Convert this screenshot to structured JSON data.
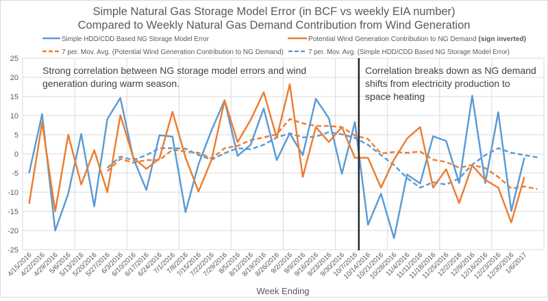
{
  "chart_data": {
    "type": "line",
    "title": [
      "Simple Natural Gas Storage Model Error (in BCF vs weekly EIA number)",
      "Compared to Weekly Natural Gas Demand Contribution from Wind Generation"
    ],
    "xlabel": "Week Ending",
    "ylabel": "",
    "ylim": [
      -25,
      25
    ],
    "yticks": [
      25,
      20,
      15,
      10,
      5,
      0,
      -5,
      -10,
      -15,
      -20,
      -25
    ],
    "grid": true,
    "legend_position": "top",
    "categories": [
      "4/15/2016",
      "4/22/2016",
      "4/29/2016",
      "5/6/2016",
      "5/13/2016",
      "5/20/2016",
      "5/27/2016",
      "6/3/2016",
      "6/10/2016",
      "6/17/2016",
      "6/24/2016",
      "7/1/2016",
      "7/8/2016",
      "7/15/2016",
      "7/22/2016",
      "7/29/2016",
      "8/5/2016",
      "8/12/2016",
      "8/19/2016",
      "8/26/2016",
      "9/2/2016",
      "9/9/2016",
      "9/16/2016",
      "9/23/2016",
      "9/30/2016",
      "10/7/2016",
      "10/14/2016",
      "10/21/2016",
      "10/28/2016",
      "11/4/2016",
      "11/11/2016",
      "11/18/2016",
      "11/25/2016",
      "12/2/2016",
      "12/9/2016",
      "12/16/2016",
      "12/23/2016",
      "12/30/2016",
      "1/6/2017",
      ""
    ],
    "series": [
      {
        "name": "Simple HDD/CDD Based NG Storage Model Error",
        "color": "#5B9BD5",
        "dash": false,
        "values": [
          -5,
          10.4,
          -20,
          -10.4,
          5.2,
          -13.7,
          9.1,
          14.6,
          -1.2,
          -9.4,
          4.9,
          4.5,
          -15.2,
          -2.7,
          6.2,
          14,
          -0.5,
          2.4,
          11.9,
          -1.6,
          5.4,
          -0.3,
          14.4,
          9.3,
          -5.2,
          8.3,
          -18.5,
          -10.4,
          -22,
          -5.4,
          -7.7,
          4.6,
          3.4,
          -7.6,
          15.2,
          -7.6,
          10.9,
          -14.9,
          -1,
          null
        ]
      },
      {
        "name": "Potential Wind Generation Contribution to NG Demand",
        "name_suffix": "(sign inverted)",
        "color": "#ED7D31",
        "dash": false,
        "values": [
          -13,
          8.2,
          -15,
          5,
          -8,
          1,
          -10,
          10.1,
          -1,
          -3.9,
          -1.2,
          11,
          -0.9,
          -9.8,
          -1.5,
          14,
          3.1,
          8.9,
          16.1,
          4.2,
          18.2,
          -6,
          7,
          3.1,
          7,
          -1,
          -1,
          -8.8,
          -1.5,
          4,
          7,
          -8.8,
          -4,
          -12.8,
          -3,
          -6.8,
          -8.8,
          -17.9,
          -6,
          null
        ]
      },
      {
        "name": "7 per. Mov. Avg. (Potential Wind Generation Contribution to NG Demand)",
        "color": "#ED7D31",
        "dash": true,
        "values": [
          null,
          null,
          null,
          null,
          null,
          null,
          -4.5,
          -1.3,
          -2.3,
          -1.6,
          -1.6,
          1.1,
          0.6,
          0.3,
          -1.2,
          1.5,
          2.1,
          3.6,
          4.3,
          5.1,
          9.1,
          8,
          7.3,
          7.3,
          7,
          4.8,
          3.9,
          0.1,
          0.5,
          0.3,
          0.6,
          -1.5,
          -2.1,
          -3.6,
          -2.9,
          -3.7,
          -6,
          -9,
          -8.5,
          -9.2
        ]
      },
      {
        "name": "7 per. Mov. Avg. (Simple HDD/CDD Based NG Storage Model Error)",
        "color": "#5B9BD5",
        "dash": true,
        "values": [
          null,
          null,
          null,
          null,
          null,
          null,
          -3.6,
          -0.7,
          -1.6,
          -0.3,
          1.5,
          1.5,
          1.4,
          -0.3,
          -1.5,
          0.2,
          1.5,
          1.2,
          2.4,
          4.3,
          5.4,
          4.3,
          4.5,
          5.7,
          5.1,
          4.2,
          2.4,
          -0.3,
          -2.9,
          -6.3,
          -8.8,
          -7.4,
          -8,
          -6.4,
          -2.8,
          -0.3,
          1.5,
          0.3,
          -0.3,
          -0.9
        ]
      }
    ],
    "annotations": [
      {
        "lines": [
          "Strong correlation between NG storage model errors and wind",
          "generation during warm season."
        ]
      },
      {
        "lines": [
          "Correlation breaks down as NG demand",
          "shifts from electricity production to",
          "space heating"
        ]
      }
    ],
    "divider_color": "#262626"
  }
}
